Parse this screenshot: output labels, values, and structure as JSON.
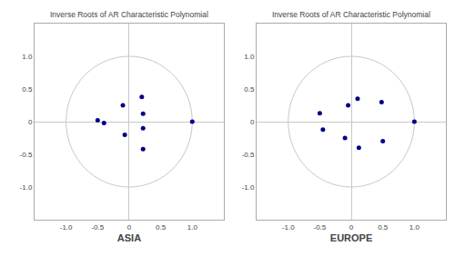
{
  "chart_data": [
    {
      "type": "scatter",
      "title": "Inverse Roots of AR Characteristic Polynomial",
      "xlabel": "ASIA",
      "x": [
        -0.5,
        -0.4,
        -0.1,
        -0.07,
        0.2,
        0.22,
        0.22,
        0.22,
        1.0
      ],
      "values": [
        0.02,
        -0.02,
        0.25,
        -0.2,
        0.38,
        0.12,
        -0.1,
        -0.42,
        0.0
      ],
      "color": "#00008B",
      "marker": "circle",
      "xlim": [
        -1.5,
        1.5
      ],
      "ylim": [
        -1.5,
        1.5
      ],
      "xticks": [
        {
          "value": -1.0,
          "label": "-1.0"
        },
        -0.5,
        0,
        0.5,
        {
          "value": 1.0,
          "label": "1.0"
        }
      ],
      "yticks": [
        {
          "value": -1.0,
          "label": "-1.0"
        },
        -0.5,
        0,
        0.5,
        {
          "value": 1.0,
          "label": "1.0"
        }
      ],
      "grid": false
    },
    {
      "type": "scatter",
      "title": "Inverse Roots of AR Characteristic Polynomial",
      "xlabel": "EUROPE",
      "x": [
        -0.5,
        -0.45,
        -0.05,
        -0.1,
        0.1,
        0.12,
        0.48,
        0.5,
        1.0
      ],
      "values": [
        0.13,
        -0.12,
        0.25,
        -0.25,
        0.35,
        -0.4,
        0.3,
        -0.3,
        0.0
      ],
      "color": "#00008B",
      "marker": "circle",
      "xlim": [
        -1.5,
        1.5
      ],
      "ylim": [
        -1.5,
        1.5
      ],
      "xticks": [
        {
          "value": -1.0,
          "label": "-1.0"
        },
        -0.5,
        0,
        0.5,
        {
          "value": 1.0,
          "label": "1.0"
        }
      ],
      "yticks": [
        {
          "value": -1.0,
          "label": "-1.0"
        },
        -0.5,
        0,
        0.5,
        {
          "value": 1.0,
          "label": "1.0"
        }
      ],
      "grid": false
    }
  ]
}
